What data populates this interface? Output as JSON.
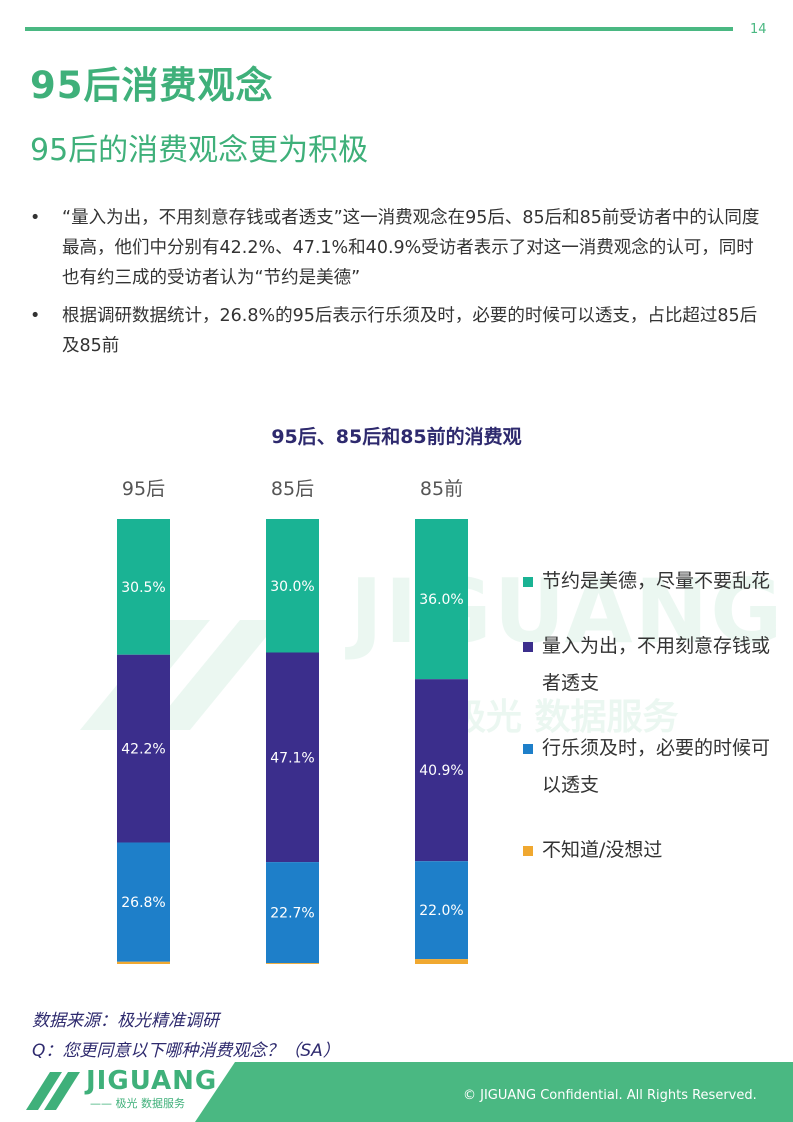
{
  "page_number": "14",
  "title": "95后消费观念",
  "subtitle": "95后的消费观念更为积极",
  "bullets": [
    "“量入为出，不用刻意存钱或者透支”这一消费观念在95后、85后和85前受访者中的认同度最高，他们中分别有42.2%、47.1%和40.9%受访者表示了对这一消费观念的认可，同时也有约三成的受访者认为“节约是美德”",
    "根据调研数据统计，26.8%的95后表示行乐须及时，必要的时候可以透支，占比超过85后及85前"
  ],
  "bullet_marker": "•",
  "watermark": {
    "text": "JIGUANG",
    "sub": "极光 数据服务"
  },
  "chart_data": {
    "type": "bar",
    "stacked": true,
    "percent": true,
    "title": "95后、85后和85前的消费观",
    "categories": [
      "95后",
      "85后",
      "85前"
    ],
    "series": [
      {
        "name": "节约是美德，尽量不要乱花",
        "color": "#1ab394",
        "values": [
          30.5,
          30.0,
          36.0
        ],
        "labels": [
          "30.5%",
          "30.0%",
          "36.0%"
        ]
      },
      {
        "name": "量入为出，不用刻意存钱或者透支",
        "color": "#3b2e8c",
        "values": [
          42.2,
          47.1,
          40.9
        ],
        "labels": [
          "42.2%",
          "47.1%",
          "40.9%"
        ]
      },
      {
        "name": "行乐须及时，必要的时候可以透支",
        "color": "#1e7fc9",
        "values": [
          26.8,
          22.7,
          22.0
        ],
        "labels": [
          "26.8%",
          "22.7%",
          "22.0%"
        ]
      },
      {
        "name": "不知道/没想过",
        "color": "#f0a830",
        "values": [
          0.5,
          0.2,
          1.1
        ],
        "labels": [
          "",
          "",
          ""
        ]
      }
    ],
    "ylim": [
      0,
      100
    ],
    "legend_position": "right"
  },
  "source": "数据来源：极光精准调研",
  "question": "Q：您更同意以下哪种消费观念？（SA）",
  "footer": {
    "logo_text": "JIGUANG",
    "logo_sub": "—— 极光 数据服务",
    "copyright": "© JIGUANG  Confidential. All Rights Reserved."
  },
  "colors": {
    "accent": "#3fb07a",
    "chart_title": "#2e2a6e"
  }
}
